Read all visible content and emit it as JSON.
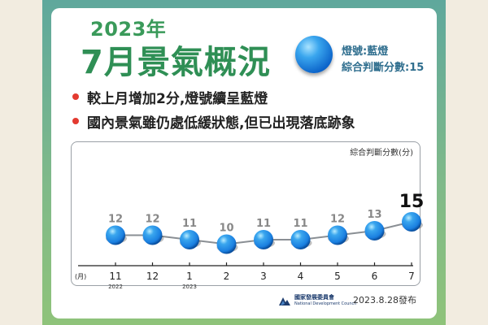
{
  "header": {
    "year": "2023年",
    "title": "7月景氣概況",
    "signal_line1": "燈號:藍燈",
    "signal_line2": "綜合判斷分數:15"
  },
  "bullets": [
    "較上月增加2分,燈號續呈藍燈",
    "國內景氣雖仍處低緩狀態,但已出現落底跡象"
  ],
  "chart_data": {
    "type": "line",
    "title": "",
    "ylabel": "綜合判斷分數(分)",
    "xlabel": "(月)",
    "categories": [
      "11",
      "12",
      "1",
      "2",
      "3",
      "4",
      "5",
      "6",
      "7"
    ],
    "year_labels": [
      "2022",
      "",
      "2023",
      "",
      "",
      "",
      "",
      "",
      ""
    ],
    "series": [
      {
        "values": [
          12,
          12,
          11,
          10,
          11,
          11,
          12,
          13,
          15
        ]
      }
    ],
    "highlight_last": true,
    "ylim": [
      9,
      15
    ],
    "marker_color": "#1a7fe0",
    "line_color": "#8a8f94",
    "label_color": "#888888",
    "highlight_label_color": "#111111"
  },
  "footer": {
    "org_name_line1": "國家發展委員會",
    "org_name_line2": "National Development Council",
    "date": "2023.8.28發布"
  }
}
